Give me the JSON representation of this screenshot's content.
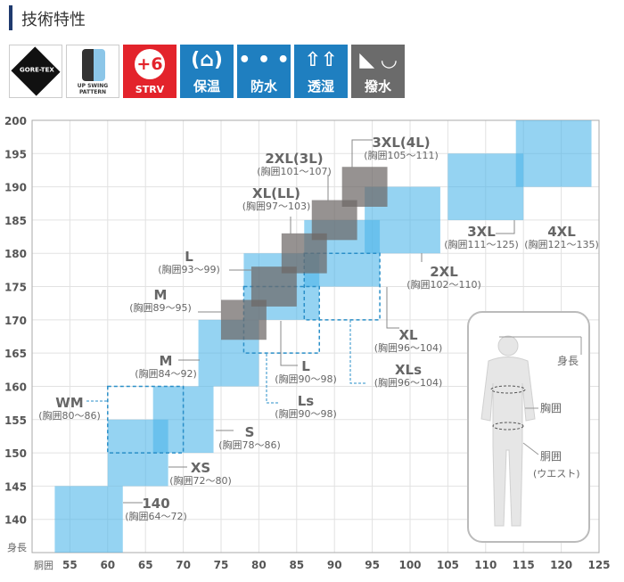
{
  "header": {
    "title": "技術特性"
  },
  "badges": [
    {
      "icon": "gore-tex-logo",
      "text": "GORE-TEX",
      "style": "white"
    },
    {
      "icon": "upswing-pattern-icon",
      "text": "UP SWING PATTERN",
      "style": "white"
    },
    {
      "icon": "strv-plus6-icon",
      "symbol": "+6",
      "text": "STRV",
      "style": "red",
      "color": "#e3232b"
    },
    {
      "icon": "insulation-icon",
      "symbol": "(⌂)",
      "text": "保温",
      "style": "blue",
      "color": "#1f7fc0"
    },
    {
      "icon": "waterproof-icon",
      "symbol": "• • •",
      "text": "防水",
      "style": "blue",
      "color": "#1f7fc0"
    },
    {
      "icon": "breathable-icon",
      "symbol": "⇧⇧",
      "text": "透湿",
      "style": "blue",
      "color": "#1f7fc0"
    },
    {
      "icon": "water-repellent-icon",
      "symbol": "◣ ◡",
      "text": "撥水",
      "style": "gray",
      "color": "#6b6b6b"
    }
  ],
  "chart_data": {
    "type": "range-box",
    "xlabel": "胴囲",
    "ylabel": "身長",
    "xlim": [
      50,
      125
    ],
    "ylim": [
      135,
      200
    ],
    "xticks": [
      55,
      60,
      65,
      70,
      75,
      80,
      85,
      90,
      95,
      100,
      105,
      110,
      115,
      120,
      125
    ],
    "yticks": [
      140,
      145,
      150,
      155,
      160,
      165,
      170,
      175,
      180,
      185,
      190,
      195,
      200
    ],
    "grid": true,
    "colors": {
      "blue": "#4fb6ea",
      "gray": "#6e6867",
      "dashed": "#2a8fc8"
    },
    "blue_boxes": [
      {
        "size": "140",
        "chest": "(胸囲64〜72)",
        "waist": [
          53,
          62
        ],
        "height": [
          135,
          145
        ]
      },
      {
        "size": "XS",
        "chest": "(胸囲72〜80)",
        "waist": [
          60,
          68
        ],
        "height": [
          145,
          155
        ]
      },
      {
        "size": "S",
        "chest": "(胸囲78〜86)",
        "waist": [
          66,
          74
        ],
        "height": [
          150,
          160
        ]
      },
      {
        "size": "M",
        "chest": "(胸囲84〜92)",
        "waist": [
          72,
          80
        ],
        "height": [
          160,
          170
        ]
      },
      {
        "size": "L",
        "chest": "(胸囲90〜98)",
        "waist": [
          78,
          88
        ],
        "height": [
          170,
          180
        ]
      },
      {
        "size": "XL",
        "chest": "(胸囲96〜104)",
        "waist": [
          86,
          96
        ],
        "height": [
          175,
          185
        ]
      },
      {
        "size": "2XL",
        "chest": "(胸囲102〜110)",
        "waist": [
          94,
          104
        ],
        "height": [
          180,
          190
        ]
      },
      {
        "size": "3XL",
        "chest": "(胸囲111〜125)",
        "waist": [
          105,
          115
        ],
        "height": [
          185,
          195
        ]
      },
      {
        "size": "4XL",
        "chest": "(胸囲121〜135)",
        "waist": [
          114,
          124
        ],
        "height": [
          190,
          200
        ]
      }
    ],
    "dashed_boxes": [
      {
        "size": "WM",
        "chest": "(胸囲80〜86)",
        "waist": [
          60,
          70
        ],
        "height": [
          150,
          160
        ]
      },
      {
        "size": "Ls",
        "chest": "(胸囲90〜98)",
        "waist": [
          78,
          88
        ],
        "height": [
          165,
          175
        ]
      },
      {
        "size": "XLs",
        "chest": "(胸囲96〜104)",
        "waist": [
          86,
          96
        ],
        "height": [
          170,
          180
        ]
      }
    ],
    "gray_boxes": [
      {
        "size": "M",
        "chest": "(胸囲89〜95)",
        "waist": [
          75,
          81
        ],
        "height": [
          167,
          173
        ]
      },
      {
        "size": "L",
        "chest": "(胸囲93〜99)",
        "waist": [
          79,
          85
        ],
        "height": [
          172,
          178
        ]
      },
      {
        "size": "XL(LL)",
        "chest": "(胸囲97〜103)",
        "waist": [
          83,
          89
        ],
        "height": [
          177,
          183
        ]
      },
      {
        "size": "2XL(3L)",
        "chest": "(胸囲101〜107)",
        "waist": [
          87,
          93
        ],
        "height": [
          182,
          188
        ]
      },
      {
        "size": "3XL(4L)",
        "chest": "(胸囲105〜111)",
        "waist": [
          91,
          97
        ],
        "height": [
          187,
          193
        ]
      }
    ]
  },
  "body_figure": {
    "height": "身長",
    "chest": "胸囲",
    "waist": "胴囲",
    "waist_sub": "(ウエスト)"
  }
}
